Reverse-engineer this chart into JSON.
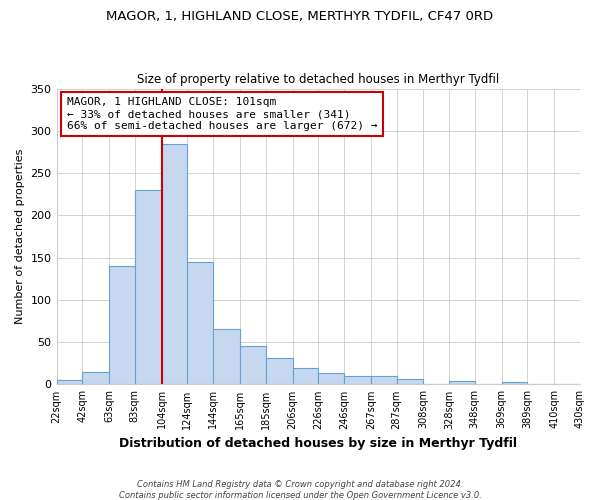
{
  "title": "MAGOR, 1, HIGHLAND CLOSE, MERTHYR TYDFIL, CF47 0RD",
  "subtitle": "Size of property relative to detached houses in Merthyr Tydfil",
  "xlabel": "Distribution of detached houses by size in Merthyr Tydfil",
  "ylabel": "Number of detached properties",
  "bin_labels": [
    "22sqm",
    "42sqm",
    "63sqm",
    "83sqm",
    "104sqm",
    "124sqm",
    "144sqm",
    "165sqm",
    "185sqm",
    "206sqm",
    "226sqm",
    "246sqm",
    "267sqm",
    "287sqm",
    "308sqm",
    "328sqm",
    "348sqm",
    "369sqm",
    "389sqm",
    "410sqm",
    "430sqm"
  ],
  "bar_values": [
    5,
    15,
    140,
    230,
    285,
    145,
    65,
    46,
    31,
    20,
    14,
    10,
    10,
    7,
    0,
    4,
    0,
    3,
    0,
    1,
    0
  ],
  "bar_color": "#c5d8f0",
  "bar_edge_color": "#6aa0cc",
  "vline_x": 104,
  "vline_color": "#cc0000",
  "annotation_text": "MAGOR, 1 HIGHLAND CLOSE: 101sqm\n← 33% of detached houses are smaller (341)\n66% of semi-detached houses are larger (672) →",
  "annotation_box_edge": "#cc0000",
  "ylim": [
    0,
    350
  ],
  "yticks": [
    0,
    50,
    100,
    150,
    200,
    250,
    300,
    350
  ],
  "footer_line1": "Contains HM Land Registry data © Crown copyright and database right 2024.",
  "footer_line2": "Contains public sector information licensed under the Open Government Licence v3.0.",
  "bin_edges": [
    22,
    42,
    63,
    83,
    104,
    124,
    144,
    165,
    185,
    206,
    226,
    246,
    267,
    287,
    308,
    328,
    348,
    369,
    389,
    410,
    430
  ]
}
